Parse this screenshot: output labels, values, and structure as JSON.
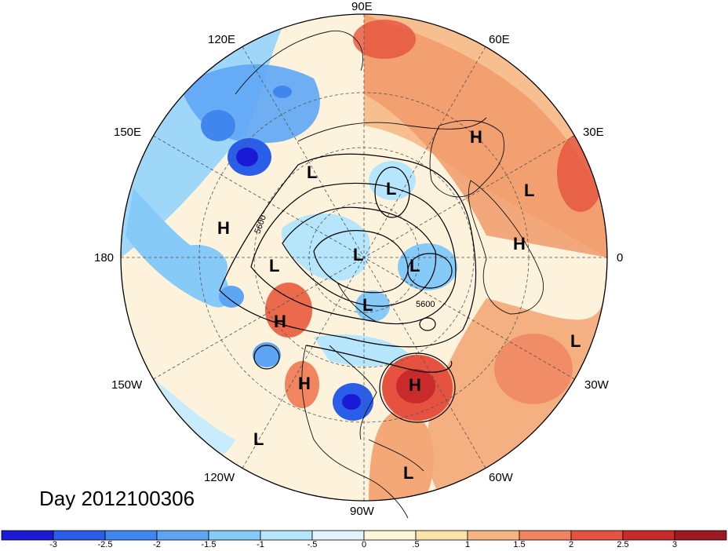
{
  "title": "Day 2012100306",
  "longitude_labels": {
    "n90e": "90E",
    "n60e": "60E",
    "n120e": "120E",
    "n30e": "30E",
    "n150e": "150E",
    "n180": "180",
    "n0": "0",
    "n150w": "150W",
    "n30w": "30W",
    "n120w": "120W",
    "n60w": "60W",
    "n90w": "90W"
  },
  "contour_labels": [
    "5600",
    "5600"
  ],
  "pressure_centers": [
    {
      "letter": "H",
      "type": "high"
    },
    {
      "letter": "L",
      "type": "low"
    },
    {
      "letter": "L",
      "type": "low"
    },
    {
      "letter": "H",
      "type": "high"
    },
    {
      "letter": "L",
      "type": "low"
    },
    {
      "letter": "L",
      "type": "low"
    },
    {
      "letter": "L",
      "type": "low"
    },
    {
      "letter": "L",
      "type": "low"
    },
    {
      "letter": "H",
      "type": "high"
    },
    {
      "letter": "H",
      "type": "high"
    },
    {
      "letter": "L",
      "type": "low"
    },
    {
      "letter": "H",
      "type": "high"
    },
    {
      "letter": "H",
      "type": "high"
    },
    {
      "letter": "L",
      "type": "low"
    },
    {
      "letter": "L",
      "type": "low"
    },
    {
      "letter": "L",
      "type": "low"
    },
    {
      "letter": "H",
      "type": "high"
    }
  ],
  "colorbar": {
    "ticks": [
      "-3",
      "-2.5",
      "-2",
      "-1.5",
      "-1",
      "-.5",
      "0",
      ".5",
      "1",
      "1.5",
      "2",
      "2.5",
      "3"
    ],
    "colors": [
      "#1a1ad6",
      "#2a5ee8",
      "#3f86ef",
      "#5ea6f4",
      "#86cbf7",
      "#b6e6fb",
      "#e2f5fd",
      "#fdf6d9",
      "#fbe2a9",
      "#f6b483",
      "#f0855f",
      "#e5523f",
      "#c92a2b",
      "#9e1a22"
    ]
  }
}
